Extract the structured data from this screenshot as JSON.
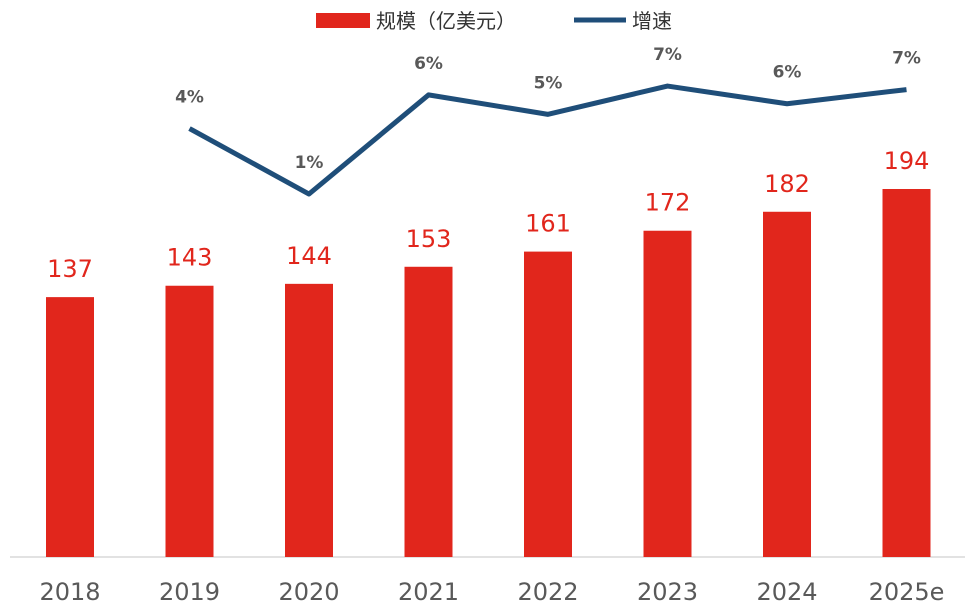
{
  "chart_data": {
    "type": "bar",
    "title": "",
    "xlabel": "",
    "ylabel": "",
    "categories": [
      "2018",
      "2019",
      "2020",
      "2021",
      "2022",
      "2023",
      "2024",
      "2025e"
    ],
    "series": [
      {
        "name": "规模（亿美元）",
        "type": "bar",
        "color": "#E1261C",
        "values": [
          137,
          143,
          144,
          153,
          161,
          172,
          182,
          194
        ],
        "labels": [
          "137",
          "143",
          "144",
          "153",
          "161",
          "172",
          "182",
          "194"
        ]
      },
      {
        "name": "增速",
        "type": "line",
        "color": "#1F4E79",
        "values": [
          null,
          4.4,
          0.7,
          6.3,
          5.2,
          6.8,
          5.8,
          6.6
        ],
        "labels": [
          null,
          "4%",
          "1%",
          "6%",
          "5%",
          "7%",
          "6%",
          "7%"
        ]
      }
    ],
    "ylim": [
      0,
      200
    ],
    "legend": "top-center",
    "grid": false
  }
}
